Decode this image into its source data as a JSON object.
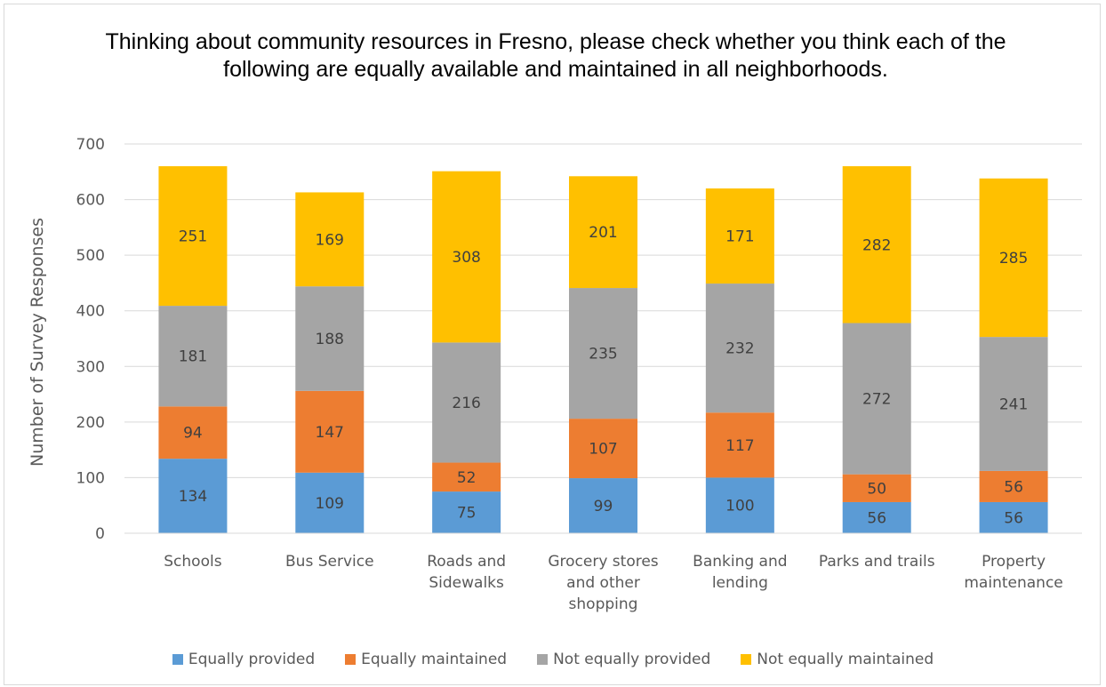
{
  "chart_data": {
    "type": "bar",
    "stacked": true,
    "title": "Thinking about community resources in Fresno, please check whether you think each of the following are equally available and maintained in all neighborhoods.",
    "xlabel": "",
    "ylabel": "Number of Survey Responses",
    "ylim": [
      0,
      700
    ],
    "yticks": [
      0,
      100,
      200,
      300,
      400,
      500,
      600,
      700
    ],
    "grid": true,
    "legend_position": "bottom",
    "categories": [
      [
        "Schools"
      ],
      [
        "Bus Service"
      ],
      [
        "Roads and",
        "Sidewalks"
      ],
      [
        "Grocery stores",
        "and other",
        "shopping"
      ],
      [
        "Banking and",
        "lending"
      ],
      [
        "Parks and trails"
      ],
      [
        "Property",
        "maintenance"
      ]
    ],
    "series": [
      {
        "name": "Equally provided",
        "color": "#5b9bd5",
        "values": [
          134,
          109,
          75,
          99,
          100,
          56,
          56
        ]
      },
      {
        "name": "Equally maintained",
        "color": "#ed7d31",
        "values": [
          94,
          147,
          52,
          107,
          117,
          50,
          56
        ]
      },
      {
        "name": "Not equally provided",
        "color": "#a5a5a5",
        "values": [
          181,
          188,
          216,
          235,
          232,
          272,
          241
        ]
      },
      {
        "name": "Not equally maintained",
        "color": "#ffc000",
        "values": [
          251,
          169,
          308,
          201,
          171,
          282,
          285
        ]
      }
    ]
  }
}
